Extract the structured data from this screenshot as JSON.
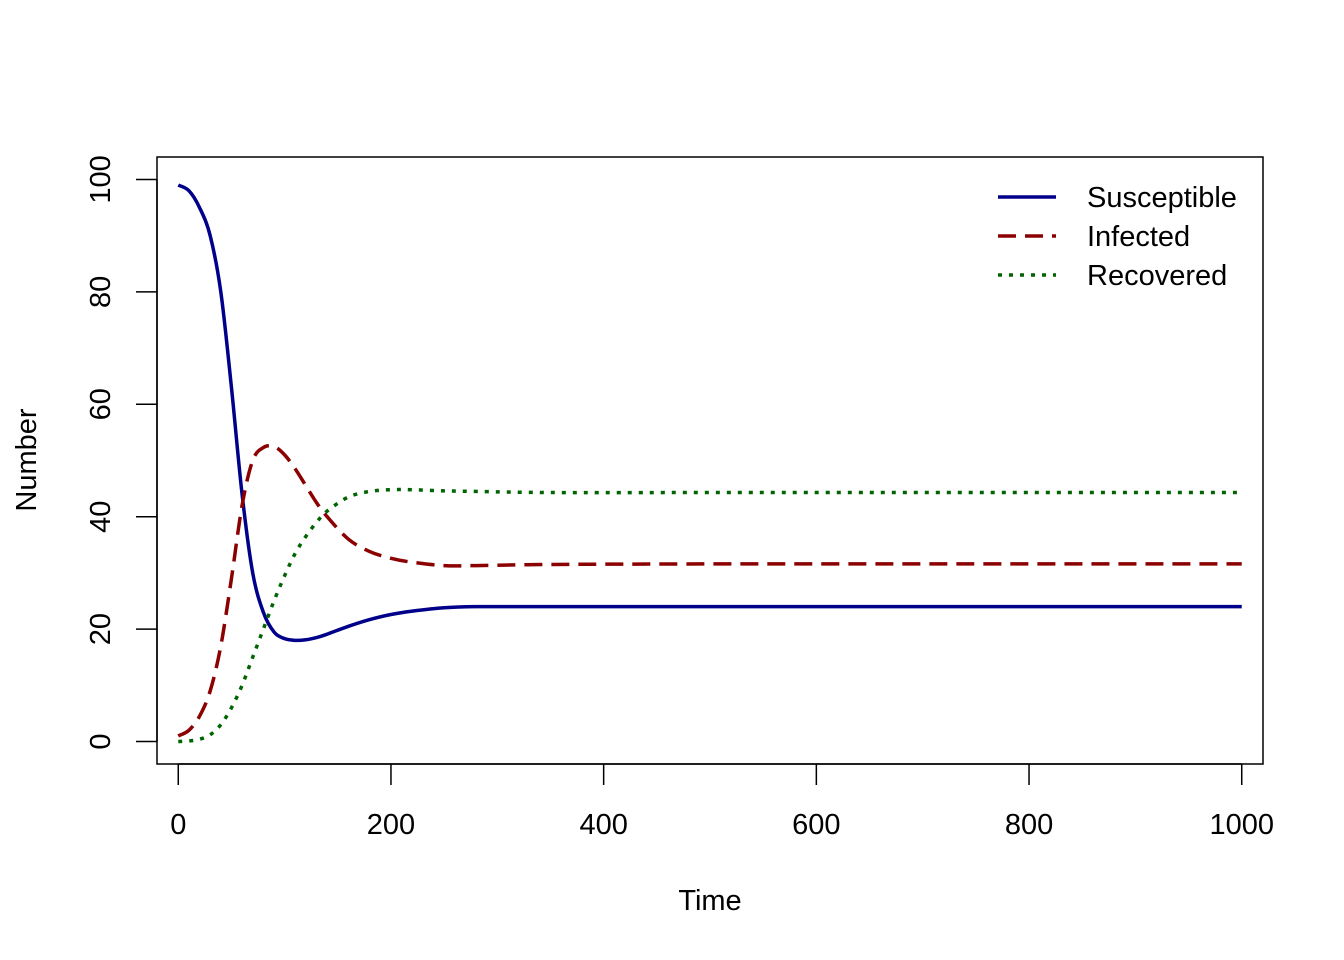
{
  "chart_data": {
    "type": "line",
    "title": "",
    "xlabel": "Time",
    "ylabel": "Number",
    "xlim": [
      -20,
      1020
    ],
    "ylim": [
      -4,
      104
    ],
    "x_ticks": [
      0,
      200,
      400,
      600,
      800,
      1000
    ],
    "y_ticks": [
      0,
      20,
      40,
      60,
      80,
      100
    ],
    "x_tick_labels": [
      "0",
      "200",
      "400",
      "600",
      "800",
      "1000"
    ],
    "y_tick_labels": [
      "0",
      "20",
      "40",
      "60",
      "80",
      "100"
    ],
    "grid": false,
    "legend": {
      "position": "top-right",
      "frame": false
    },
    "series": [
      {
        "name": "Susceptible",
        "color": "#00008B",
        "dash": "solid",
        "x": [
          0,
          10,
          20,
          30,
          40,
          50,
          60,
          70,
          80,
          90,
          100,
          110,
          120,
          130,
          140,
          160,
          180,
          200,
          220,
          250,
          280,
          350,
          500,
          700,
          1000
        ],
        "y": [
          99,
          98,
          95,
          90,
          80,
          63,
          44,
          30,
          23,
          19.5,
          18.3,
          18.0,
          18.1,
          18.5,
          19.1,
          20.5,
          21.7,
          22.6,
          23.2,
          23.8,
          24.0,
          24.0,
          24.0,
          24.0,
          24.0
        ]
      },
      {
        "name": "Infected",
        "color": "#8B0000",
        "dash": "dashed",
        "x": [
          0,
          10,
          20,
          30,
          40,
          50,
          60,
          70,
          80,
          90,
          100,
          110,
          120,
          130,
          140,
          160,
          180,
          200,
          220,
          250,
          280,
          350,
          500,
          700,
          1000
        ],
        "y": [
          1,
          2,
          4.5,
          9,
          17,
          29,
          42,
          50,
          52.3,
          52.5,
          51,
          48.5,
          45.5,
          42.5,
          40,
          36,
          33.8,
          32.6,
          31.9,
          31.3,
          31.3,
          31.5,
          31.6,
          31.6,
          31.6
        ]
      },
      {
        "name": "Recovered",
        "color": "#006400",
        "dash": "dotted",
        "x": [
          0,
          10,
          20,
          30,
          40,
          50,
          60,
          70,
          80,
          90,
          100,
          110,
          120,
          130,
          140,
          160,
          180,
          200,
          220,
          250,
          280,
          350,
          500,
          700,
          1000
        ],
        "y": [
          0,
          0.1,
          0.4,
          1.2,
          3,
          6,
          10,
          15,
          20,
          25,
          29.5,
          33.5,
          36.5,
          39,
          41,
          43.5,
          44.5,
          44.8,
          44.8,
          44.6,
          44.5,
          44.3,
          44.3,
          44.3,
          44.3
        ]
      }
    ]
  }
}
